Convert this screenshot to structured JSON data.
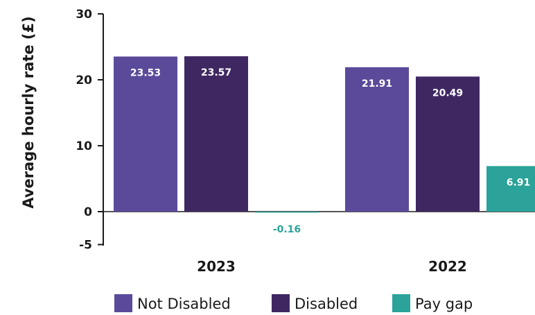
{
  "chart_data": {
    "type": "bar",
    "categories": [
      "2023",
      "2022"
    ],
    "series": [
      {
        "name": "Not Disabled",
        "values": [
          23.53,
          21.91
        ],
        "labels": [
          "23.53",
          "21.91"
        ],
        "color": "#5b4a9a"
      },
      {
        "name": "Disabled",
        "values": [
          23.57,
          20.49
        ],
        "labels": [
          "23.57",
          "20.49"
        ],
        "color": "#3f2862"
      },
      {
        "name": "Pay gap",
        "values": [
          -0.16,
          6.91
        ],
        "labels": [
          "-0.16",
          "6.91"
        ],
        "color": "#2ba39a"
      }
    ],
    "ylabel": "Average hourly rate (£)",
    "ylim": [
      -5,
      30
    ],
    "yticks": [
      -5,
      0,
      10,
      20,
      30
    ],
    "ytick_labels": [
      "-5",
      "0",
      "10",
      "20",
      "30"
    ],
    "grid": false,
    "legend_position": "bottom"
  }
}
